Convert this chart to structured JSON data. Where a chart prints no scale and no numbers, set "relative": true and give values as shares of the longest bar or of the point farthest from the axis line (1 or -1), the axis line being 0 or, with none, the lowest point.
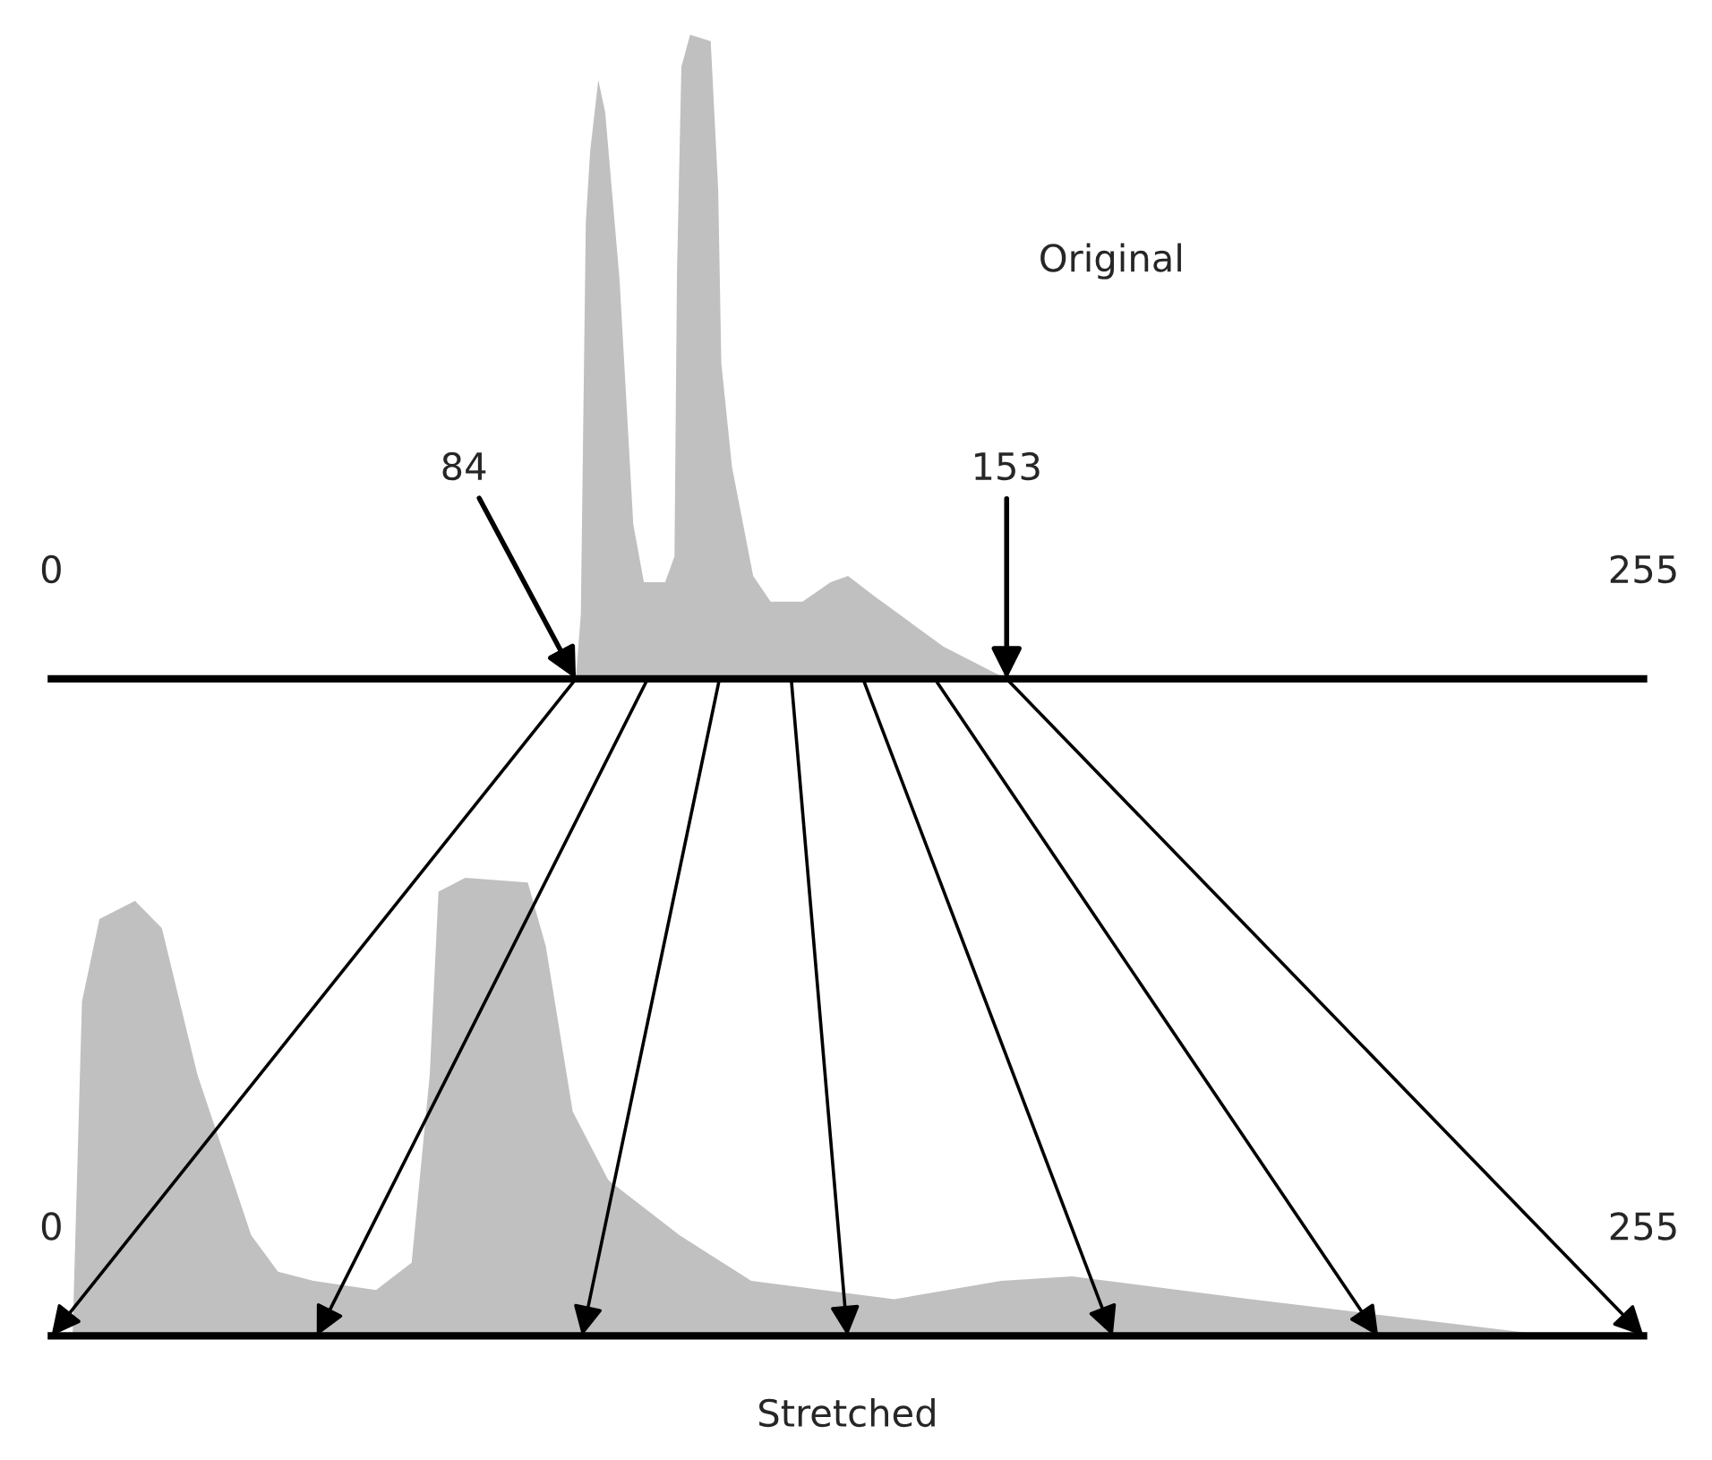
{
  "chart_data": [
    {
      "type": "area",
      "relative": true,
      "xlim": [
        0,
        255
      ],
      "xticks": [
        0,
        255
      ],
      "grid": false,
      "legend": false,
      "annotations": [
        "Original",
        {
          "text": "84",
          "x": 84,
          "y": 0
        },
        {
          "text": "153",
          "x": 153,
          "y": 0
        }
      ],
      "series": [
        {
          "color": "#c0c0c0",
          "x": [
            84,
            84.8,
            85.6,
            86.3,
            87.6,
            88.7,
            91.0,
            93.2,
            94.9,
            98.3,
            99.8,
            100.2,
            100.9,
            102.3,
            105.6,
            106.8,
            107.3,
            109.0,
            112.4,
            115.2,
            120.3,
            124.8,
            127.6,
            131.6,
            142.9,
            153
          ],
          "values": [
            0,
            0.1,
            0.71,
            0.82,
            0.93,
            0.88,
            0.62,
            0.24,
            0.15,
            0.15,
            0.19,
            0.63,
            0.95,
            1,
            0.99,
            0.76,
            0.49,
            0.33,
            0.16,
            0.12,
            0.12,
            0.15,
            0.16,
            0.13,
            0.05,
            0
          ]
        }
      ]
    },
    {
      "type": "area",
      "relative": true,
      "xlim": [
        0,
        255
      ],
      "xticks": [
        0,
        255
      ],
      "grid": false,
      "legend": false,
      "xlabel": "Stretched",
      "series": [
        {
          "color": "#c0c0c0",
          "x": [
            3.4,
            4.9,
            7.7,
            13.4,
            17.7,
            23.4,
            32.0,
            36.3,
            42.0,
            52.0,
            57.7,
            60.6,
            62.0,
            66.3,
            76.3,
            79.2,
            83.5,
            89.2,
            100.6,
            112.1,
            135.0,
            152.1,
            163.5,
            192.1,
            240.7
          ],
          "values": [
            0,
            0.73,
            0.91,
            0.95,
            0.89,
            0.57,
            0.22,
            0.14,
            0.12,
            0.1,
            0.16,
            0.57,
            0.97,
            1,
            0.99,
            0.85,
            0.49,
            0.34,
            0.22,
            0.12,
            0.08,
            0.12,
            0.13,
            0.08,
            0
          ]
        }
      ]
    }
  ]
}
